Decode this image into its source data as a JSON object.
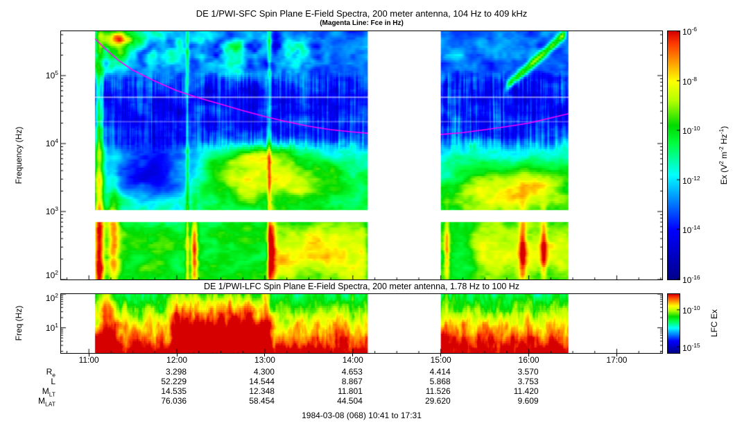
{
  "footer": {
    "text": "1984-03-08 (068) 10:41 to 17:31"
  },
  "colors": {
    "background": "#FFFFFF",
    "axis": "#000000",
    "fce_line": "#FF00FF"
  },
  "table": {
    "row_labels": [
      "R_e",
      "L",
      "M_LT",
      "M_LAT"
    ],
    "column_hours": [
      12,
      13,
      14,
      15,
      16
    ],
    "values": [
      [
        "3.298",
        "4.300",
        "4.653",
        "4.414",
        "3.570"
      ],
      [
        "52.229",
        "14.544",
        "8.867",
        "5.868",
        "3.753"
      ],
      [
        "14.535",
        "12.348",
        "11.801",
        "11.526",
        "11.420"
      ],
      [
        "76.036",
        "58.454",
        "44.504",
        "29.620",
        "9.609"
      ]
    ]
  },
  "chart_data": [
    {
      "type": "heatmap",
      "role": "SFC E-field spectrogram",
      "title": "DE 1/PWI-SFC  Spin Plane E-Field Spectra, 200 meter antenna, 104 Hz to 409 kHz",
      "subtitle": "(Magenta Line: Fce in Hz)",
      "ylabel": "Frequency (Hz)",
      "y_scale": "log",
      "y_range_hz": [
        100,
        450000
      ],
      "y_tick_exponents": [
        5,
        4,
        3,
        2
      ],
      "x_start_label": "10:41",
      "x_end_label": "17:31",
      "x_range_hours": [
        10.6833,
        17.5167
      ],
      "x_ticks": [
        "11:00",
        "12:00",
        "13:00",
        "14:00",
        "15:00",
        "16:00",
        "17:00"
      ],
      "data_segments_hours": [
        [
          11.07,
          14.17
        ],
        [
          15.0,
          16.45
        ]
      ],
      "white_band_hz": [
        700,
        1050
      ],
      "colorbar": {
        "label": "Ex (V^2 m^-2 Hz^-1)",
        "tick_exponents": [
          -6,
          -8,
          -10,
          -12,
          -14,
          -16
        ],
        "scale_range": [
          1e-16,
          1e-06
        ],
        "palette": "rainbow: dark blue -> blue -> cyan -> green -> yellow -> orange -> red"
      },
      "fce_line_points": [
        [
          11.07,
          350000
        ],
        [
          11.17,
          260000
        ],
        [
          11.33,
          170000
        ],
        [
          11.5,
          120000
        ],
        [
          11.75,
          83000
        ],
        [
          12.0,
          60000
        ],
        [
          12.25,
          47000
        ],
        [
          12.5,
          38000
        ],
        [
          12.75,
          30500
        ],
        [
          13.0,
          25000
        ],
        [
          13.25,
          21000
        ],
        [
          13.5,
          18000
        ],
        [
          13.75,
          16000
        ],
        [
          14.0,
          14800
        ],
        [
          14.17,
          14200
        ],
        [
          15.0,
          13600
        ],
        [
          15.25,
          14500
        ],
        [
          15.5,
          16000
        ],
        [
          15.75,
          17800
        ],
        [
          16.0,
          20000
        ],
        [
          16.2,
          23000
        ],
        [
          16.45,
          27500
        ]
      ]
    },
    {
      "type": "heatmap",
      "role": "LFC E-field spectrogram",
      "title": "DE 1/PWI-LFC  Spin Plane E-Field Spectra, 200 meter antenna, 1.78 Hz to 100 Hz",
      "ylabel": "Freq (Hz)",
      "y_scale": "log",
      "y_range_hz": [
        1.78,
        100
      ],
      "y_tick_exponents": [
        2,
        1
      ],
      "data_segments_hours": [
        [
          11.07,
          14.17
        ],
        [
          15.0,
          16.45
        ]
      ],
      "colorbar": {
        "label": "LFC Ex",
        "tick_exponents": [
          -10,
          -15
        ]
      }
    }
  ]
}
